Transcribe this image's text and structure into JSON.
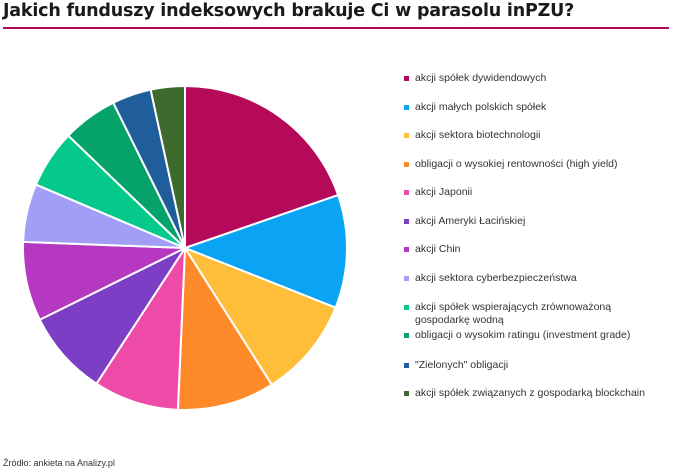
{
  "title": "Jakich funduszy indeksowych brakuje Ci w parasolu inPZU?",
  "source": "Źródło: ankieta na Analizy.pl",
  "colors": {
    "accent": "#b00a55"
  },
  "chart_data": {
    "type": "pie",
    "title": "Jakich funduszy indeksowych brakuje Ci w parasolu inPZU?",
    "legend_position": "right",
    "slices": [
      {
        "label": "akcji spółek dywidendowych",
        "value": 19.7,
        "color": "#b5095a"
      },
      {
        "label": "akcji małych polskich spółek",
        "value": 11.3,
        "color": "#0ba3f3"
      },
      {
        "label": "akcji sektora biotechnologii",
        "value": 10.0,
        "color": "#ffbe3a"
      },
      {
        "label": "obligacji o wysokiej rentowności (high yield)",
        "value": 9.7,
        "color": "#ff8a2a"
      },
      {
        "label": "akcji Japonii",
        "value": 8.5,
        "color": "#ee4aa8"
      },
      {
        "label": "akcji Ameryki Łacińskiej",
        "value": 8.5,
        "color": "#7b3ec4"
      },
      {
        "label": "akcji Chin",
        "value": 7.9,
        "color": "#b637c0"
      },
      {
        "label": "akcji sektora cyberbezpieczeństwa",
        "value": 5.8,
        "color": "#a39ef5"
      },
      {
        "label": "akcji spółek wspierających zrównoważoną gospodarkę wodną",
        "value": 5.8,
        "color": "#04c98a"
      },
      {
        "label": "obligacji o wysokim ratingu (investment grade)",
        "value": 5.5,
        "color": "#05a36a"
      },
      {
        "label": "\"Zielonych\" obligacji",
        "value": 3.9,
        "color": "#1f5e9a"
      },
      {
        "label": "akcji spółek związanych z gospodarką blockchain",
        "value": 3.4,
        "color": "#3f6a2d"
      }
    ]
  }
}
